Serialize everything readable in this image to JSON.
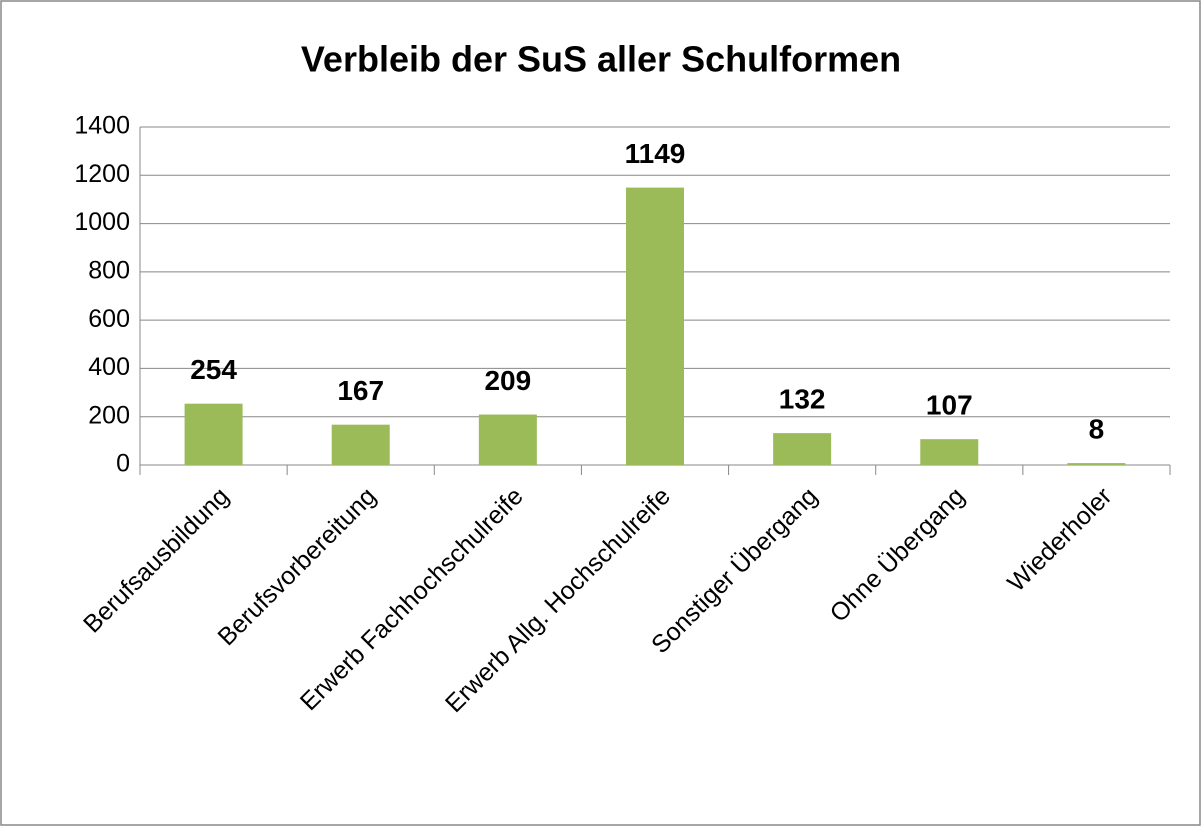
{
  "chart_data": {
    "type": "bar",
    "title": "Verbleib der SuS aller Schulformen",
    "categories": [
      "Berufsausbildung",
      "Berufsvorbereitung",
      "Erwerb Fachhochschulreife",
      "Erwerb Allg. Hochschulreife",
      "Sonstiger Übergang",
      "Ohne Übergang",
      "Wiederholer"
    ],
    "values": [
      254,
      167,
      209,
      1149,
      132,
      107,
      8
    ],
    "color": "#9bbb59",
    "ylim": [
      0,
      1400
    ],
    "yticks": [
      0,
      200,
      400,
      600,
      800,
      1000,
      1200,
      1400
    ],
    "grid": true
  }
}
